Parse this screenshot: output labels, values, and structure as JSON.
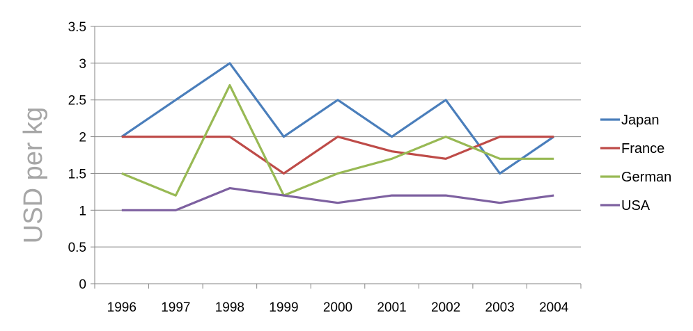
{
  "chart_data": {
    "type": "line",
    "title": "",
    "xlabel": "",
    "ylabel": "USD per kg",
    "categories": [
      "1996",
      "1997",
      "1998",
      "1999",
      "2000",
      "2001",
      "2002",
      "2003",
      "2004"
    ],
    "ylim": [
      0,
      3.5
    ],
    "yticks": [
      "0",
      "0.5",
      "1",
      "1.5",
      "2",
      "2.5",
      "3",
      "3.5"
    ],
    "grid": "horizontal",
    "legend_position": "right",
    "series": [
      {
        "name": "Japan",
        "color": "#4a7ebb",
        "values": [
          2,
          2.5,
          3,
          2,
          2.5,
          2,
          2.5,
          1.5,
          2
        ]
      },
      {
        "name": "France",
        "color": "#be4b48",
        "values": [
          2,
          2,
          2,
          1.5,
          2,
          1.8,
          1.7,
          2,
          2
        ]
      },
      {
        "name": "German",
        "color": "#98b954",
        "values": [
          1.5,
          1.2,
          2.7,
          1.2,
          1.5,
          1.7,
          2,
          1.7,
          1.7
        ]
      },
      {
        "name": "USA",
        "color": "#7d60a0",
        "values": [
          1,
          1,
          1.3,
          1.2,
          1.1,
          1.2,
          1.2,
          1.1,
          1.2
        ]
      }
    ]
  }
}
